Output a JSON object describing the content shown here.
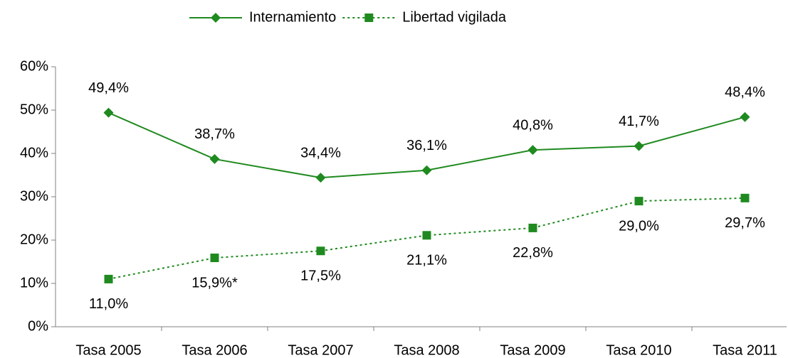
{
  "chart_data": {
    "type": "line",
    "categories": [
      "Tasa 2005",
      "Tasa 2006",
      "Tasa 2007",
      "Tasa 2008",
      "Tasa 2009",
      "Tasa 2010",
      "Tasa 2011"
    ],
    "series": [
      {
        "name": "Internamiento",
        "color": "#1f8a1f",
        "style": "solid",
        "marker": "diamond",
        "label_position": "above",
        "values": [
          49.4,
          38.7,
          34.4,
          36.1,
          40.8,
          41.7,
          48.4
        ],
        "value_labels": [
          "49,4%",
          "38,7%",
          "34,4%",
          "36,1%",
          "40,8%",
          "41,7%",
          "48,4%"
        ]
      },
      {
        "name": "Libertad vigilada",
        "color": "#1f8a1f",
        "style": "dotted",
        "marker": "square",
        "label_position": "below",
        "values": [
          11.0,
          15.9,
          17.5,
          21.1,
          22.8,
          29.0,
          29.7
        ],
        "value_labels": [
          "11,0%",
          "15,9%*",
          "17,5%",
          "21,1%",
          "22,8%",
          "29,0%",
          "29,7%"
        ]
      }
    ],
    "ylim": [
      0,
      60
    ],
    "yticks": [
      {
        "value": 0,
        "label": "0%"
      },
      {
        "value": 10,
        "label": "10%"
      },
      {
        "value": 20,
        "label": "20%"
      },
      {
        "value": 30,
        "label": "30%"
      },
      {
        "value": 40,
        "label": "40%"
      },
      {
        "value": 50,
        "label": "50%"
      },
      {
        "value": 60,
        "label": "60%"
      }
    ],
    "grid": false,
    "legend": "top"
  }
}
